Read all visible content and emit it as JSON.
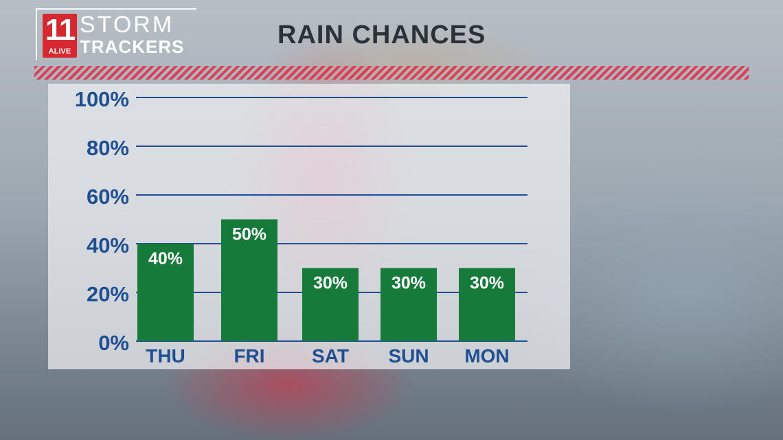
{
  "branding": {
    "number": "11",
    "alive": "ALIVE",
    "storm": "STORM",
    "trackers": "TRACKERS"
  },
  "title": "RAIN CHANCES",
  "colors": {
    "bar": "#157a3a",
    "grid": "#1f4f93",
    "axis_text": "#1f4f93",
    "brand_red": "#d7282f"
  },
  "chart_data": {
    "type": "bar",
    "categories": [
      "THU",
      "FRI",
      "SAT",
      "SUN",
      "MON"
    ],
    "values": [
      40,
      50,
      30,
      30,
      30
    ],
    "value_labels": [
      "40%",
      "50%",
      "30%",
      "30%",
      "30%"
    ],
    "title": "RAIN CHANCES",
    "xlabel": "",
    "ylabel": "",
    "ylim": [
      0,
      100
    ],
    "yticks": [
      0,
      20,
      40,
      60,
      80,
      100
    ],
    "ytick_labels": [
      "0%",
      "20%",
      "40%",
      "60%",
      "80%",
      "100%"
    ],
    "grid": true,
    "legend": "none"
  }
}
